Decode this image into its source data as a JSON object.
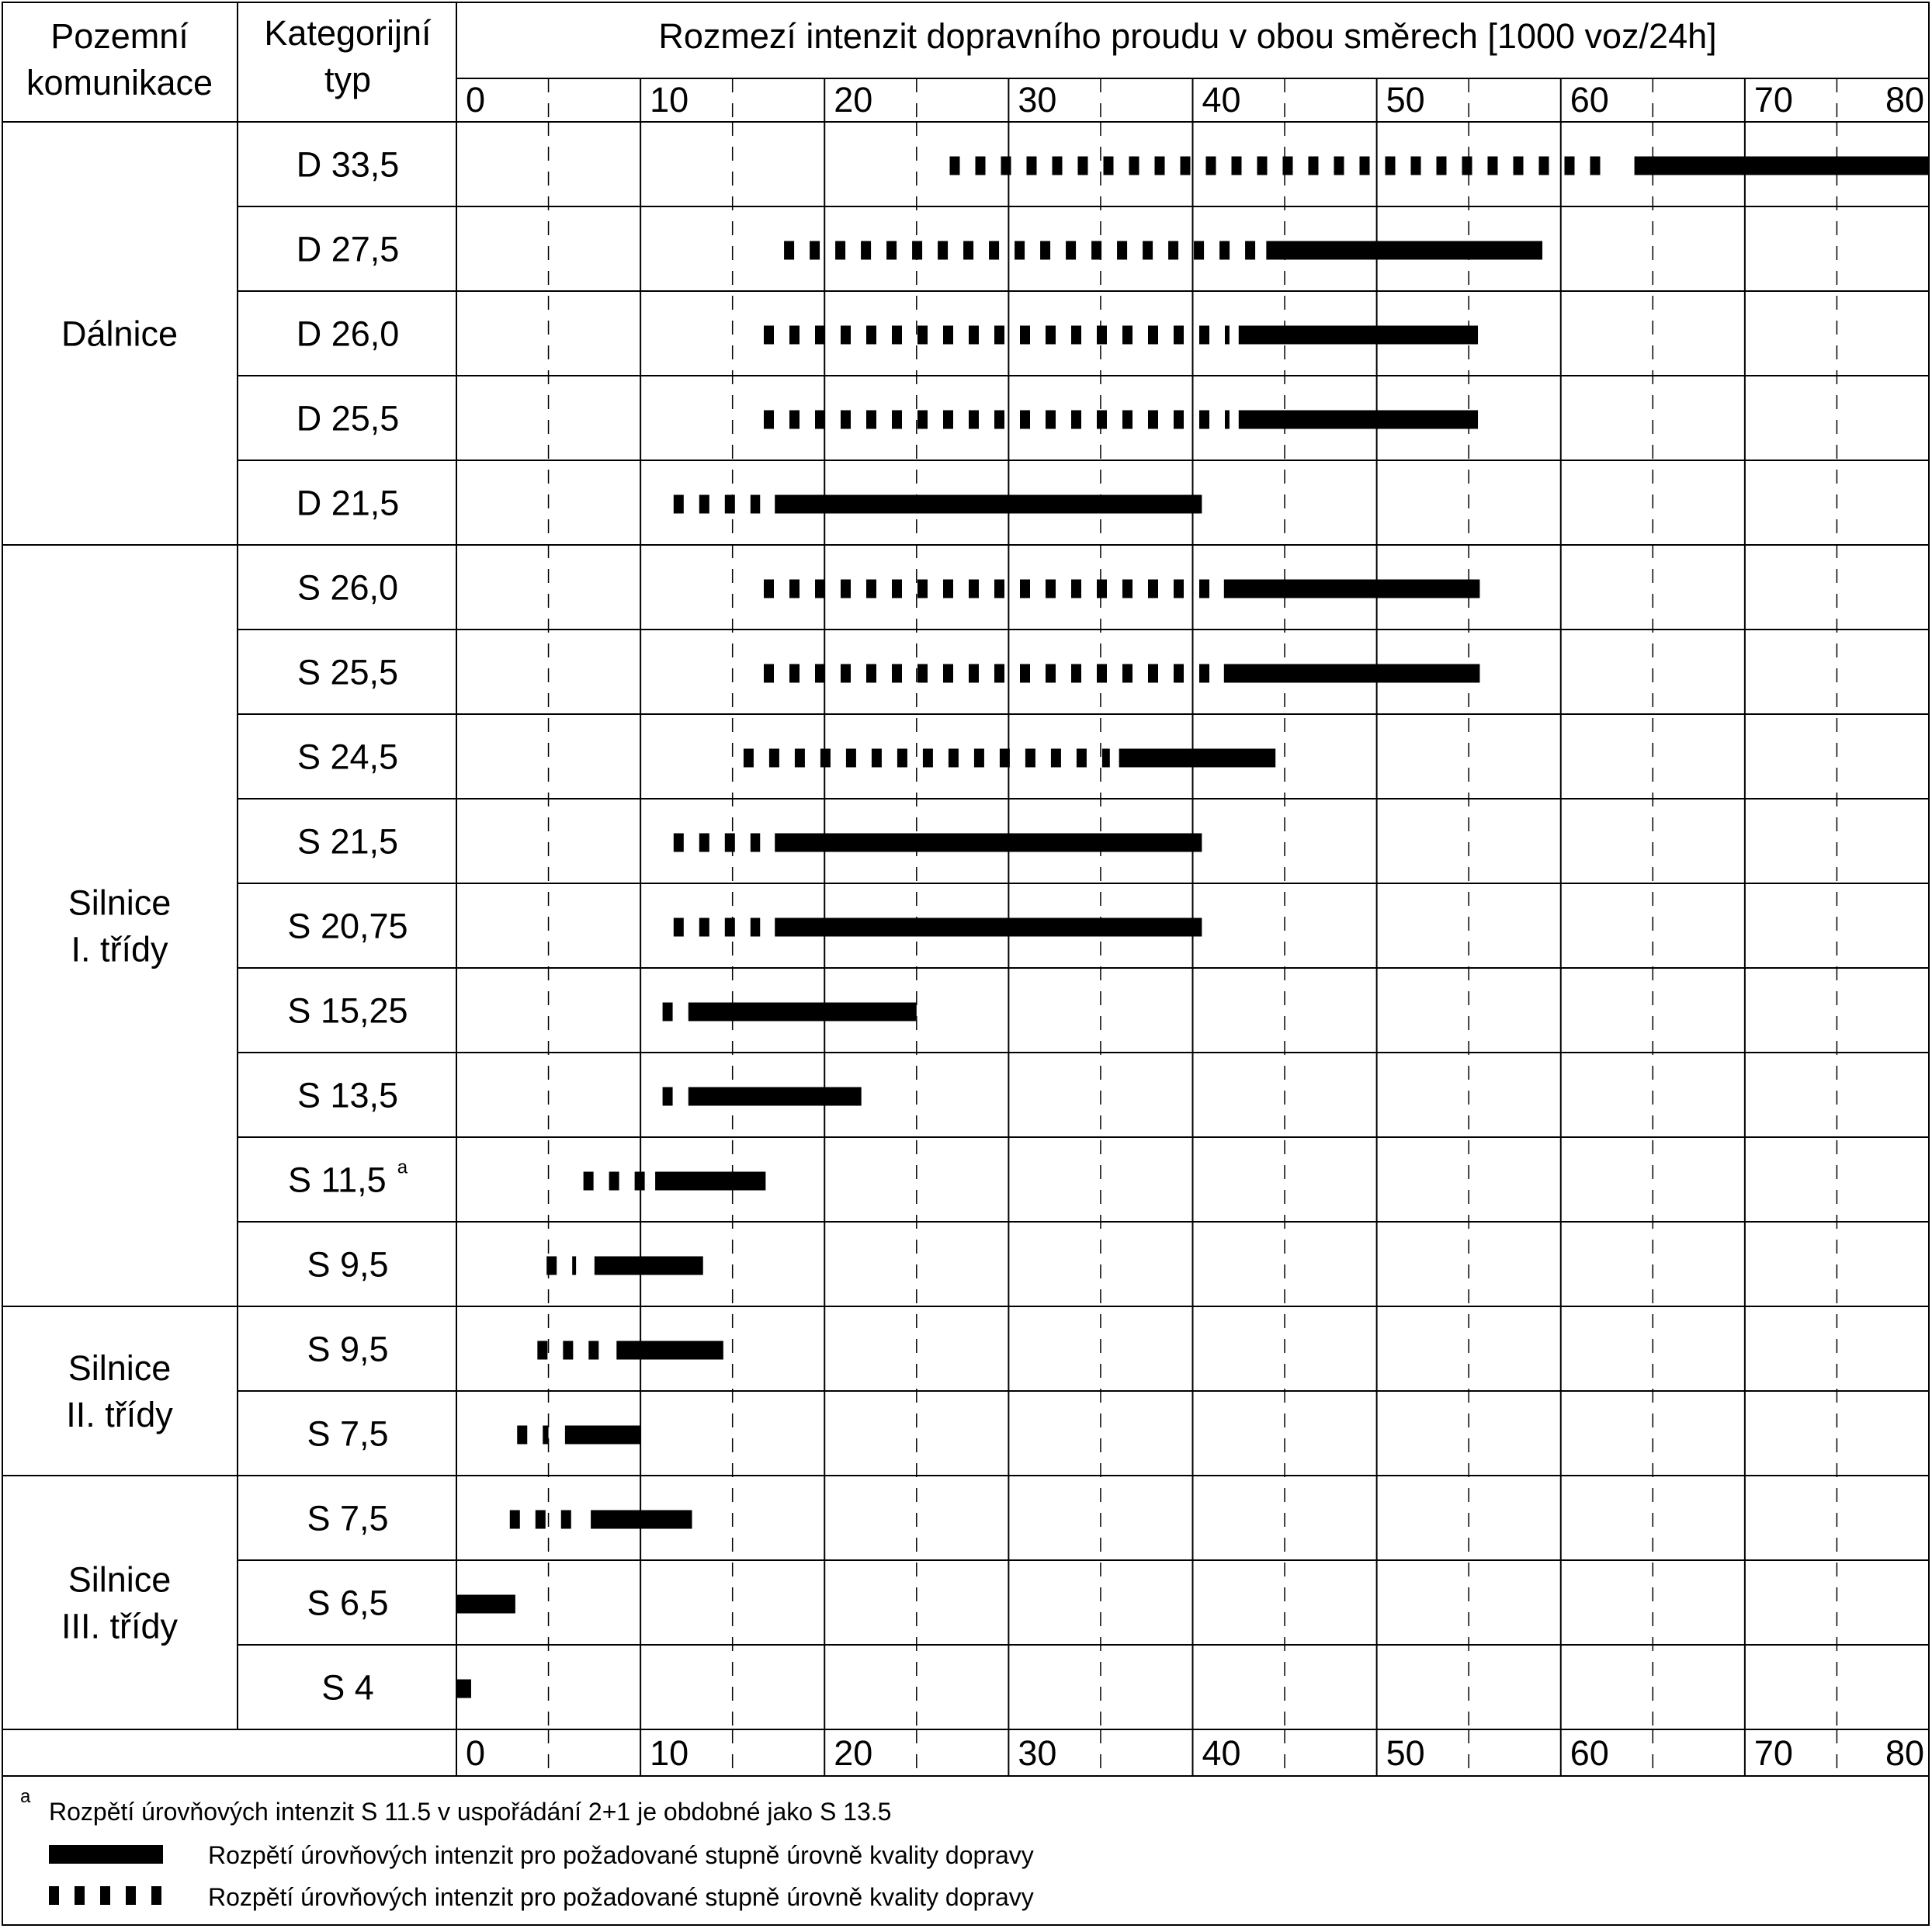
{
  "header": {
    "col1_line1": "Pozemní",
    "col1_line2": "komunikace",
    "col2_line1": "Kategorijní",
    "col2_line2": "typ",
    "axis_title": "Rozmezí intenzit dopravního proudu v obou směrech [1000 voz/24h]"
  },
  "groups": [
    {
      "lines": [
        "Dálnice"
      ]
    },
    {
      "lines": [
        "Silnice",
        "I. třídy"
      ]
    },
    {
      "lines": [
        "Silnice",
        "II. třídy"
      ]
    },
    {
      "lines": [
        "Silnice",
        "III. třídy"
      ]
    }
  ],
  "footnote": {
    "marker": "a",
    "text": "Rozpětí úrovňových intenzit S 11.5 v uspořádání 2+1 je obdobné jako S 13.5"
  },
  "legend": [
    {
      "style": "solid",
      "label": "Rozpětí úrovňových intenzit pro požadované stupně úrovně kvality dopravy"
    },
    {
      "style": "dashed",
      "label": "Rozpětí úrovňových intenzit pro požadované stupně úrovně kvality dopravy"
    }
  ],
  "chart_data": {
    "type": "bar",
    "orientation": "horizontal",
    "title": "Rozmezí intenzit dopravního proudu v obou směrech [1000 voz/24h]",
    "xlim": [
      0,
      80
    ],
    "xticks": [
      "0",
      "10",
      "20",
      "30",
      "40",
      "50",
      "60",
      "70",
      "80"
    ],
    "grid": "solid lines every 10, dashed lines at 5, 15, 25, ...",
    "series": [
      {
        "style": "dashed",
        "label": "Rozpětí úrovňových intenzit pro požadované stupně úrovně kvality dopravy"
      },
      {
        "style": "solid",
        "label": "Rozpětí úrovňových intenzit pro požadované stupně úrovně kvality dopravy"
      }
    ],
    "rows": [
      {
        "group": "Dálnice",
        "type": "D 33,5",
        "dashed": [
          26.8,
          63.0
        ],
        "solid": [
          64.0,
          80.0
        ]
      },
      {
        "group": "Dálnice",
        "type": "D 27,5",
        "dashed": [
          17.8,
          43.5
        ],
        "solid": [
          44.0,
          59.0
        ]
      },
      {
        "group": "Dálnice",
        "type": "D 26,0",
        "dashed": [
          16.7,
          42.0
        ],
        "solid": [
          42.5,
          55.5
        ]
      },
      {
        "group": "Dálnice",
        "type": "D 25,5",
        "dashed": [
          16.7,
          42.0
        ],
        "solid": [
          42.5,
          55.5
        ]
      },
      {
        "group": "Dálnice",
        "type": "D 21,5",
        "dashed": [
          11.8,
          16.5
        ],
        "solid": [
          17.3,
          40.5
        ]
      },
      {
        "group": "Silnice I. třídy",
        "type": "S 26,0",
        "dashed": [
          16.7,
          41.2
        ],
        "solid": [
          41.7,
          55.6
        ]
      },
      {
        "group": "Silnice I. třídy",
        "type": "S 25,5",
        "dashed": [
          16.7,
          41.2
        ],
        "solid": [
          41.7,
          55.6
        ]
      },
      {
        "group": "Silnice I. třídy",
        "type": "S 24,5",
        "dashed": [
          15.6,
          35.5
        ],
        "solid": [
          36.0,
          44.5
        ]
      },
      {
        "group": "Silnice I. třídy",
        "type": "S 21,5",
        "dashed": [
          11.8,
          16.5
        ],
        "solid": [
          17.3,
          40.5
        ]
      },
      {
        "group": "Silnice I. třídy",
        "type": "S 20,75",
        "dashed": [
          11.8,
          16.5
        ],
        "solid": [
          17.3,
          40.5
        ]
      },
      {
        "group": "Silnice I. třídy",
        "type": "S 15,25",
        "dashed": [
          11.2,
          11.9
        ],
        "solid": [
          12.6,
          25.0
        ]
      },
      {
        "group": "Silnice I. třídy",
        "type": "S 13,5",
        "dashed": [
          11.2,
          11.9
        ],
        "solid": [
          12.6,
          22.0
        ]
      },
      {
        "group": "Silnice I. třídy",
        "type": "S 11,5",
        "footnote": "a",
        "dashed": [
          6.9,
          10.8
        ],
        "solid": [
          10.8,
          16.8
        ]
      },
      {
        "group": "Silnice I. třídy",
        "type": "S 9,5",
        "dashed": [
          4.9,
          6.5
        ],
        "solid": [
          7.5,
          13.4
        ]
      },
      {
        "group": "Silnice II. třídy",
        "type": "S 9,5",
        "dashed": [
          4.4,
          8.0
        ],
        "solid": [
          8.7,
          14.5
        ]
      },
      {
        "group": "Silnice II. třídy",
        "type": "S 7,5",
        "dashed": [
          3.3,
          5.0
        ],
        "solid": [
          5.9,
          10.0
        ]
      },
      {
        "group": "Silnice III. třídy",
        "type": "S 7,5",
        "dashed": [
          2.9,
          6.4
        ],
        "solid": [
          7.3,
          12.8
        ]
      },
      {
        "group": "Silnice III. třídy",
        "type": "S 6,5",
        "dashed": null,
        "solid": [
          0.0,
          3.2
        ]
      },
      {
        "group": "Silnice III. třídy",
        "type": "S 4",
        "dashed": null,
        "solid": [
          0.0,
          0.8
        ]
      }
    ]
  }
}
